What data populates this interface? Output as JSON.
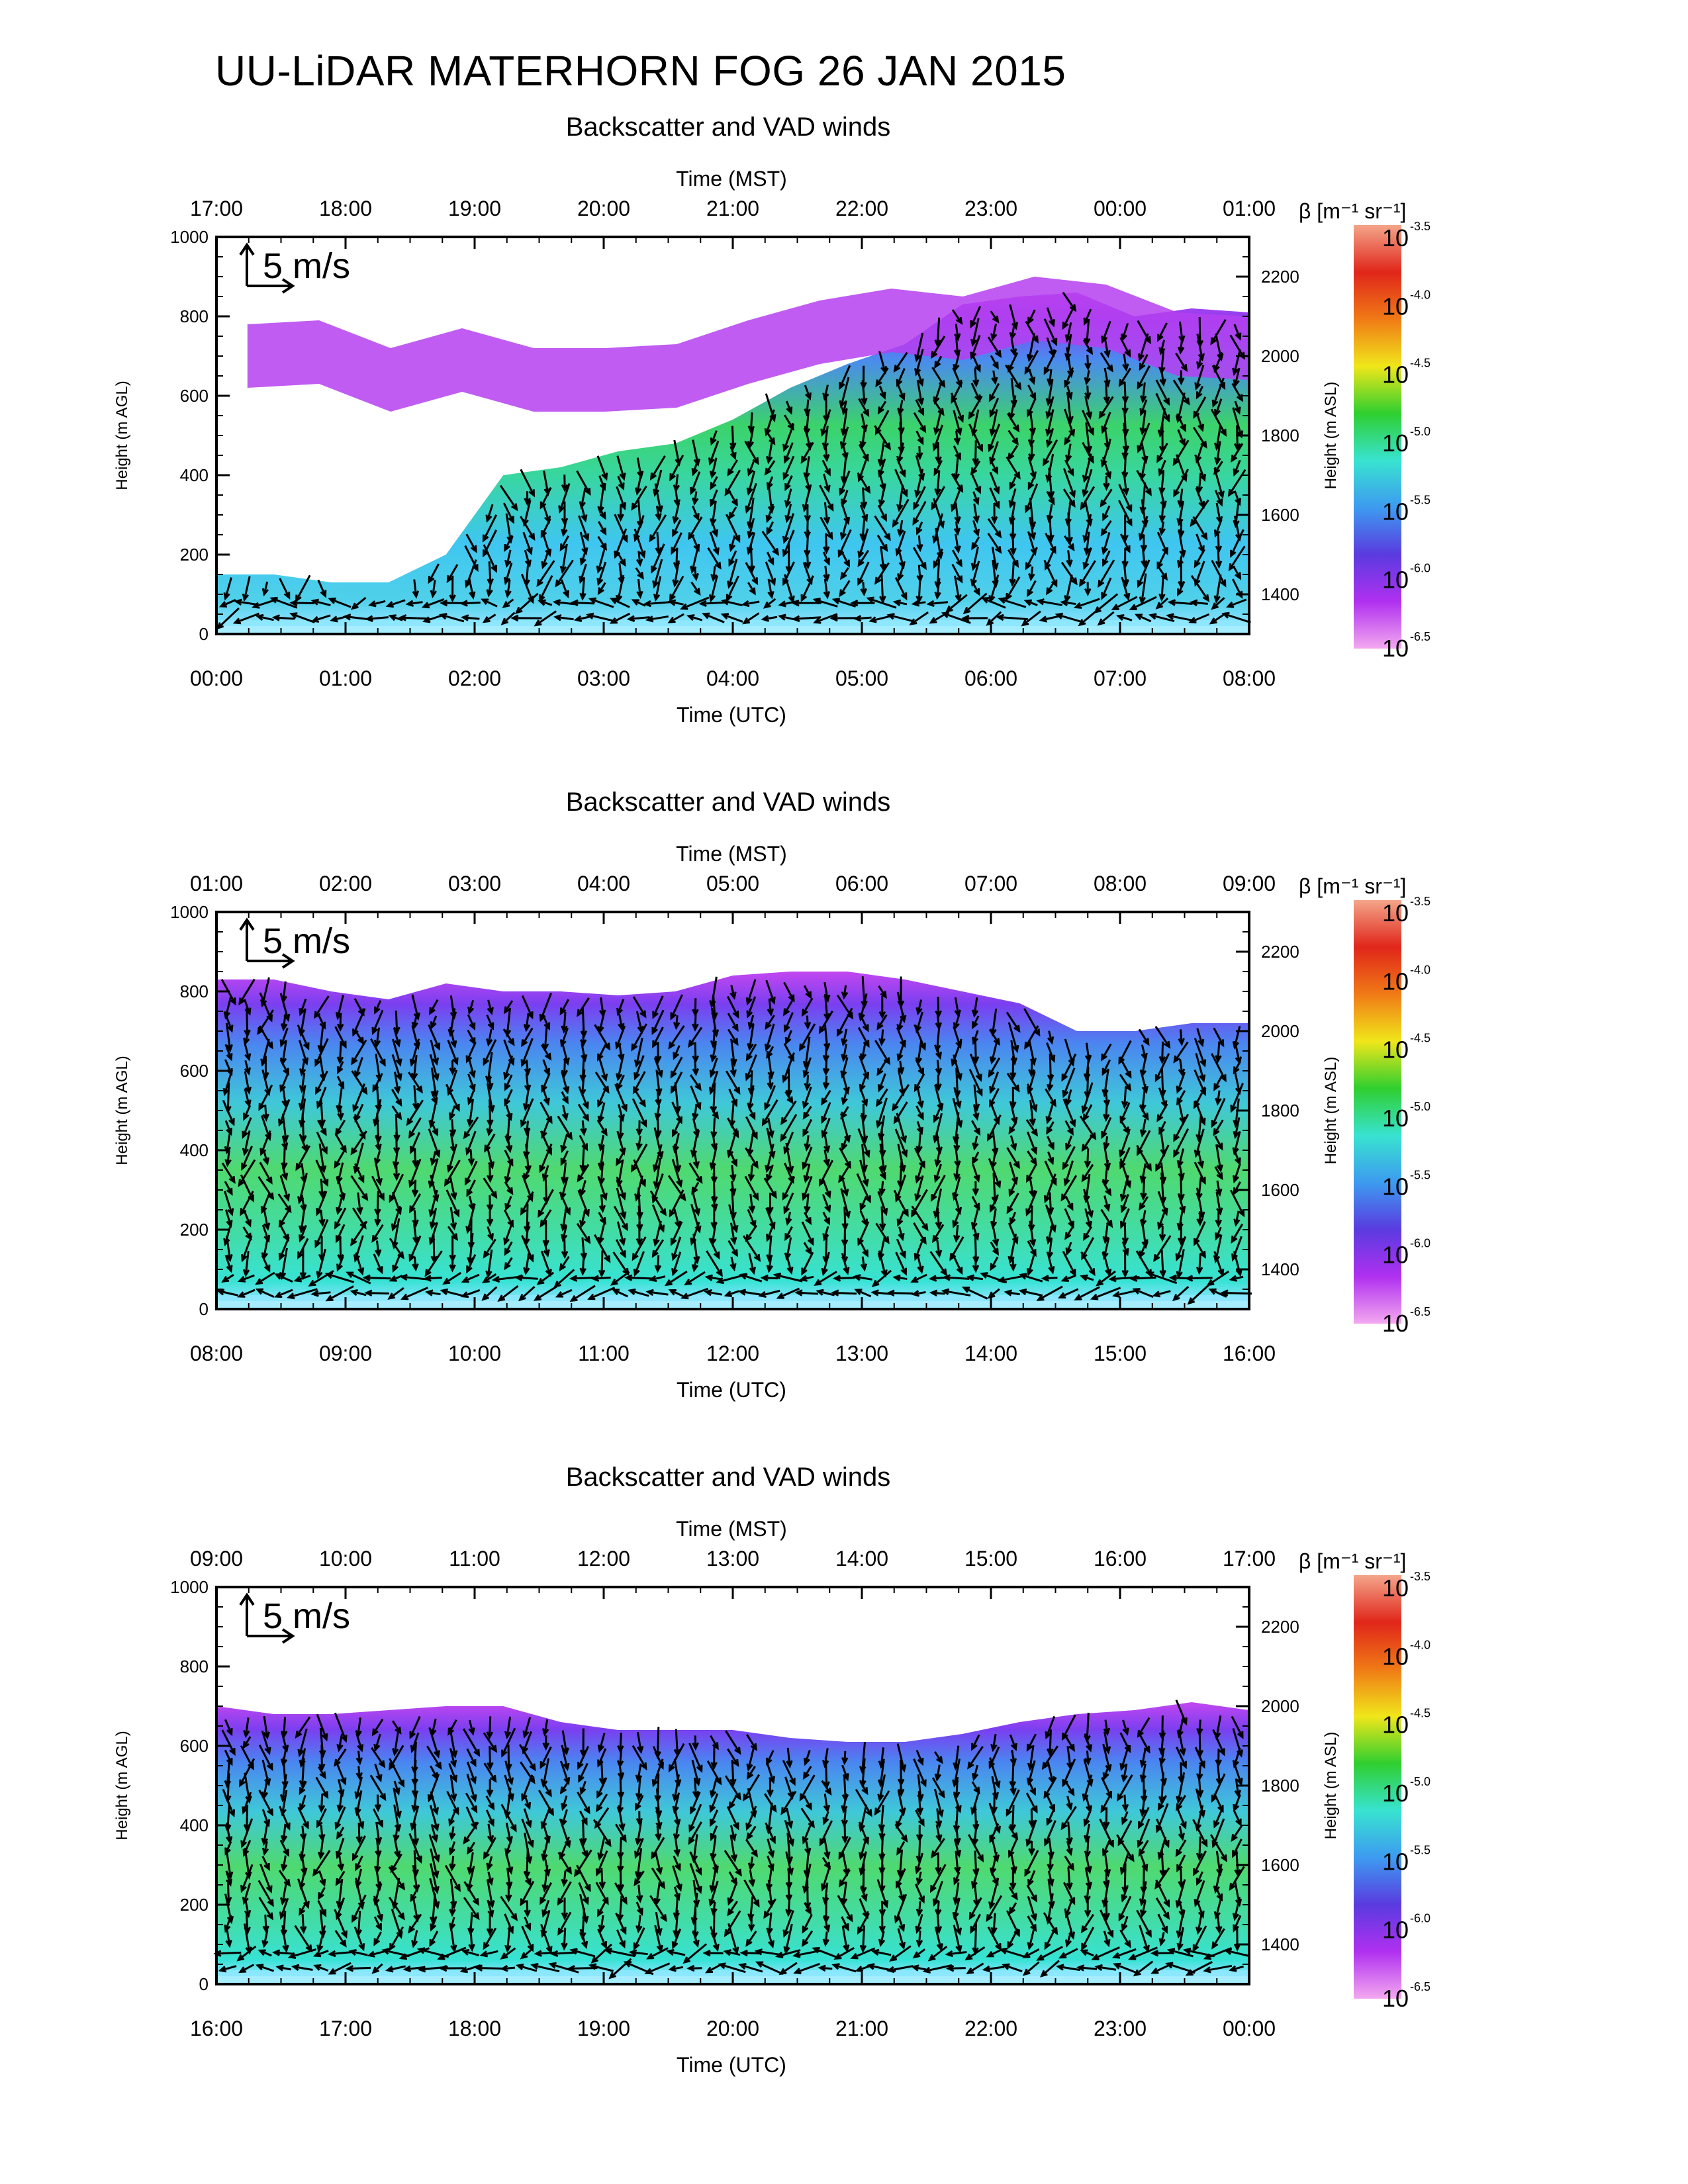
{
  "title": "UU-LiDAR MATERHORN FOG  26 JAN 2015",
  "colorbar": {
    "label": "β [m⁻¹ sr⁻¹]",
    "exponents": [
      "-3.5",
      "-4.0",
      "-4.5",
      "-5.0",
      "-5.5",
      "-6.0",
      "-6.5"
    ],
    "base": "10",
    "colors": [
      "#f4a58a",
      "#e0261a",
      "#f07a16",
      "#f0e61a",
      "#2fcf2f",
      "#38e3d0",
      "#3d9bf0",
      "#5a3be0",
      "#b030f0",
      "#f3a8f0"
    ]
  },
  "reference_vector": "5 m/s",
  "panels": [
    {
      "title": "Backscatter and VAD winds",
      "top_axis_label": "Time (MST)",
      "bottom_axis_label": "Time (UTC)",
      "left_axis_label": "Height (m AGL)",
      "right_axis_label": "Height (m ASL)",
      "mst_ticks": [
        "17:00",
        "18:00",
        "19:00",
        "20:00",
        "21:00",
        "22:00",
        "23:00",
        "00:00",
        "01:00"
      ],
      "utc_ticks": [
        "00:00",
        "01:00",
        "02:00",
        "03:00",
        "04:00",
        "05:00",
        "06:00",
        "07:00",
        "08:00"
      ],
      "agl_ticks": [
        "0",
        "200",
        "400",
        "600",
        "800",
        "1000"
      ],
      "asl_ticks": [
        "1400",
        "1600",
        "1800",
        "2000",
        "2200"
      ]
    },
    {
      "title": "Backscatter and VAD winds",
      "top_axis_label": "Time (MST)",
      "bottom_axis_label": "Time (UTC)",
      "left_axis_label": "Height (m AGL)",
      "right_axis_label": "Height (m ASL)",
      "mst_ticks": [
        "01:00",
        "02:00",
        "03:00",
        "04:00",
        "05:00",
        "06:00",
        "07:00",
        "08:00",
        "09:00"
      ],
      "utc_ticks": [
        "08:00",
        "09:00",
        "10:00",
        "11:00",
        "12:00",
        "13:00",
        "14:00",
        "15:00",
        "16:00"
      ],
      "agl_ticks": [
        "0",
        "200",
        "400",
        "600",
        "800",
        "1000"
      ],
      "asl_ticks": [
        "1400",
        "1600",
        "1800",
        "2000",
        "2200"
      ]
    },
    {
      "title": "Backscatter and VAD winds",
      "top_axis_label": "Time (MST)",
      "bottom_axis_label": "Time (UTC)",
      "left_axis_label": "Height (m AGL)",
      "right_axis_label": "Height (m ASL)",
      "mst_ticks": [
        "09:00",
        "10:00",
        "11:00",
        "12:00",
        "13:00",
        "14:00",
        "15:00",
        "16:00",
        "17:00"
      ],
      "utc_ticks": [
        "16:00",
        "17:00",
        "18:00",
        "19:00",
        "20:00",
        "21:00",
        "22:00",
        "23:00",
        "00:00"
      ],
      "agl_ticks": [
        "0",
        "200",
        "400",
        "600",
        "800",
        "1000"
      ],
      "asl_ticks": [
        "1400",
        "1600",
        "1800",
        "2000",
        "2200"
      ]
    }
  ],
  "chart_data": [
    {
      "type": "heatmap",
      "title": "Backscatter and VAD winds",
      "xlabel": "Time (UTC)",
      "x2label": "Time (MST)",
      "ylabel": "Height (m AGL)",
      "y2label": "Height (m ASL)",
      "ylim": [
        0,
        1000
      ],
      "y2lim": [
        1300,
        2300
      ],
      "xlim": [
        "00:00",
        "08:00"
      ],
      "colorscale": "log10 backscatter, 1e-6.5 to 1e-3.5 m-1 sr-1",
      "layer_top_agl": [
        150,
        150,
        130,
        130,
        200,
        400,
        420,
        460,
        480,
        540,
        620,
        680,
        730,
        830,
        850,
        860,
        800,
        820,
        810
      ],
      "upper_cloud_top_agl": [
        780,
        790,
        720,
        770,
        720,
        720,
        730,
        790,
        840,
        870,
        850,
        900,
        880,
        810,
        800
      ]
    },
    {
      "type": "heatmap",
      "title": "Backscatter and VAD winds",
      "xlabel": "Time (UTC)",
      "x2label": "Time (MST)",
      "ylabel": "Height (m AGL)",
      "y2label": "Height (m ASL)",
      "ylim": [
        0,
        1000
      ],
      "y2lim": [
        1300,
        2300
      ],
      "xlim": [
        "08:00",
        "16:00"
      ],
      "colorscale": "log10 backscatter, 1e-6.5 to 1e-3.5 m-1 sr-1",
      "layer_top_agl": [
        830,
        830,
        800,
        780,
        820,
        800,
        800,
        790,
        800,
        840,
        850,
        850,
        830,
        800,
        770,
        700,
        700,
        720,
        720
      ]
    },
    {
      "type": "heatmap",
      "title": "Backscatter and VAD winds",
      "xlabel": "Time (UTC)",
      "x2label": "Time (MST)",
      "ylabel": "Height (m AGL)",
      "y2label": "Height (m ASL)",
      "ylim": [
        0,
        1000
      ],
      "y2lim": [
        1300,
        2300
      ],
      "xlim": [
        "16:00",
        "00:00"
      ],
      "colorscale": "log10 backscatter, 1e-6.5 to 1e-3.5 m-1 sr-1",
      "layer_top_agl": [
        700,
        680,
        680,
        690,
        700,
        700,
        660,
        640,
        640,
        640,
        620,
        610,
        610,
        630,
        660,
        680,
        690,
        710,
        690
      ]
    }
  ]
}
